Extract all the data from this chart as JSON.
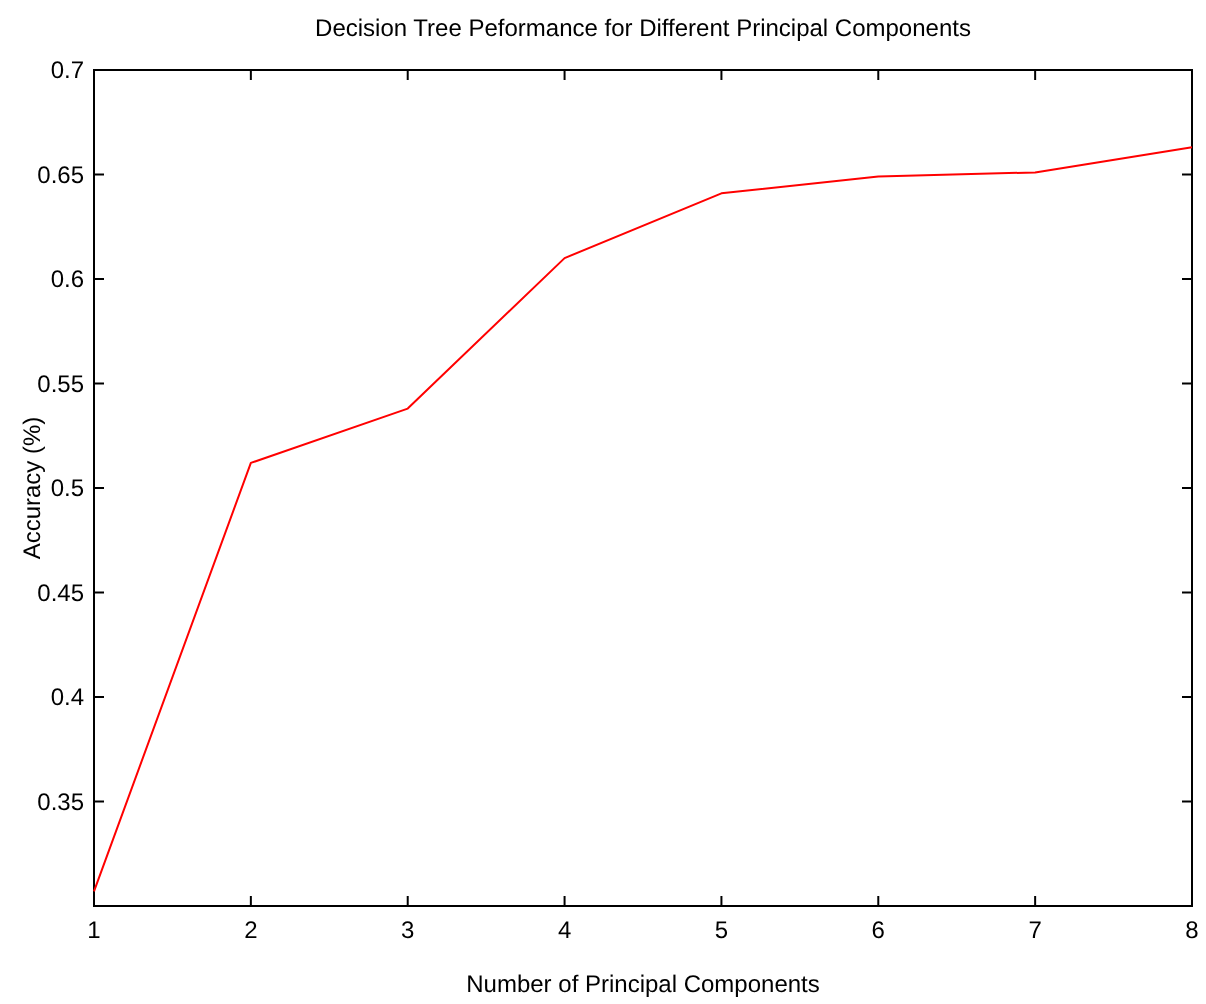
{
  "chart_data": {
    "type": "line",
    "title": "Decision Tree Peformance for Different Principal Components",
    "xlabel": "Number of Principal Components",
    "ylabel": "Accuracy (%)",
    "x": [
      1,
      2,
      3,
      4,
      5,
      6,
      7,
      8
    ],
    "series": [
      {
        "color": "#ff0000",
        "values": [
          0.307,
          0.512,
          0.538,
          0.61,
          0.641,
          0.649,
          0.651,
          0.663
        ]
      }
    ],
    "xlim": [
      1,
      8
    ],
    "xticks": [
      1,
      2,
      3,
      4,
      5,
      6,
      7,
      8
    ],
    "ylim": [
      0.3,
      0.7
    ],
    "yticks": [
      0.35,
      0.4,
      0.45,
      0.5,
      0.55,
      0.6,
      0.65,
      0.7
    ],
    "marker": "none",
    "line_style": "solid"
  }
}
